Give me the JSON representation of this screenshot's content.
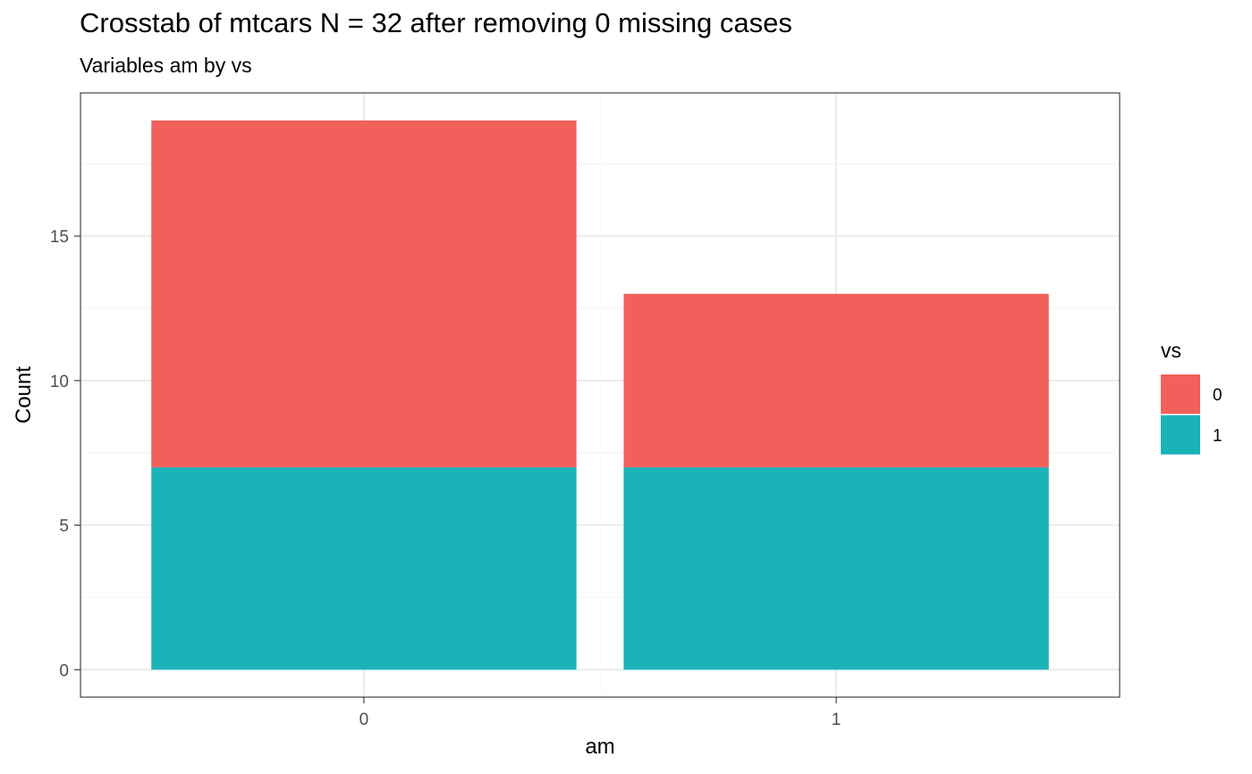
{
  "chart_data": {
    "type": "bar",
    "stacked": true,
    "title": "Crosstab of mtcars N = 32 after removing 0 missing cases",
    "subtitle": "Variables am by vs",
    "xlabel": "am",
    "ylabel": "Count",
    "categories": [
      "0",
      "1"
    ],
    "series": [
      {
        "name": "0",
        "values": [
          12,
          6
        ],
        "color": "#F2605B"
      },
      {
        "name": "1",
        "values": [
          7,
          7
        ],
        "color": "#1AB3B8"
      }
    ],
    "ylim": [
      -0.95,
      19.95
    ],
    "yticks": [
      0,
      5,
      10,
      15
    ],
    "grid": true,
    "legend": {
      "title": "vs",
      "position": "right"
    },
    "theme": {
      "panel_border": "#333333",
      "grid_major": "#ebebeb",
      "grid_minor": "#f4f4f4"
    }
  }
}
